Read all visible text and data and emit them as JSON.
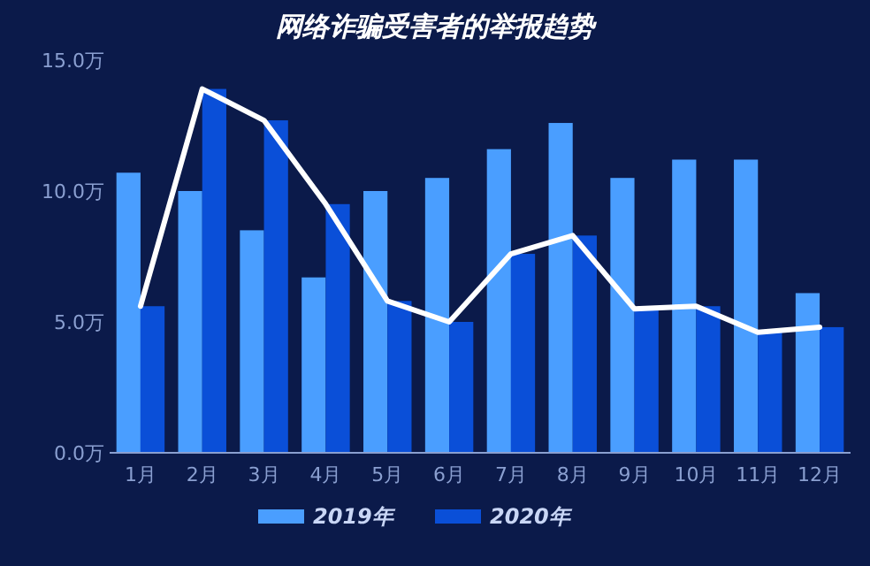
{
  "chart_data": {
    "type": "bar",
    "title": "网络诈骗受害者的举报趋势",
    "categories": [
      "1月",
      "2月",
      "3月",
      "4月",
      "5月",
      "6月",
      "7月",
      "8月",
      "9月",
      "10月",
      "11月",
      "12月"
    ],
    "series": [
      {
        "name": "2019年",
        "color": "#4a9eff",
        "values": [
          10.7,
          10.0,
          8.5,
          6.7,
          10.0,
          10.5,
          11.6,
          12.6,
          10.5,
          11.2,
          11.2,
          6.1
        ]
      },
      {
        "name": "2020年",
        "color": "#0a4fd8",
        "values": [
          5.6,
          13.9,
          12.7,
          9.5,
          5.8,
          5.0,
          7.6,
          8.3,
          5.5,
          5.6,
          4.6,
          4.8
        ]
      },
      {
        "type": "line",
        "color": "#ffffff",
        "values": [
          5.6,
          13.9,
          12.7,
          9.5,
          5.8,
          5.0,
          7.6,
          8.3,
          5.5,
          5.6,
          4.6,
          4.8
        ]
      }
    ],
    "ylim": [
      0,
      15
    ],
    "yticks": [
      {
        "value": 0,
        "label": "0.0万"
      },
      {
        "value": 5,
        "label": "5.0万"
      },
      {
        "value": 10,
        "label": "10.0万"
      },
      {
        "value": 15,
        "label": "15.0万"
      }
    ],
    "legend": "bottom",
    "grid": false
  }
}
